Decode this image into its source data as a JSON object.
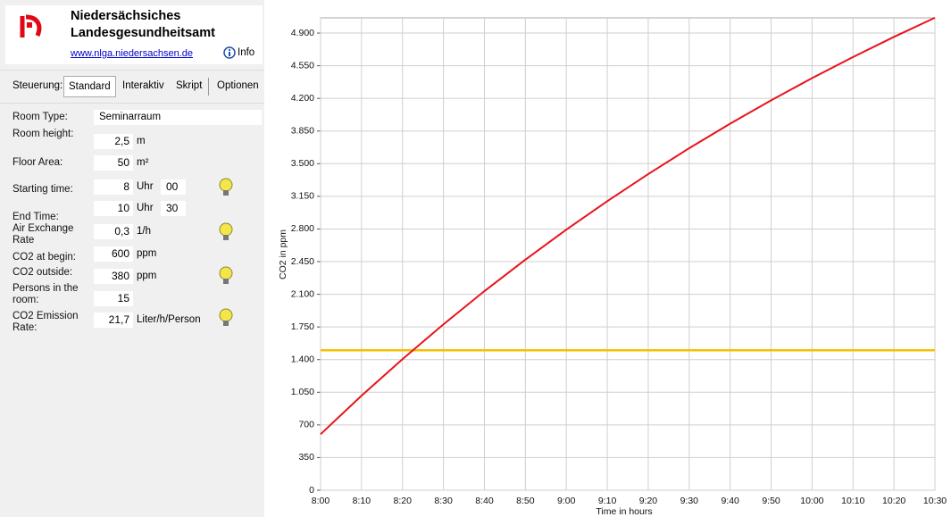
{
  "header": {
    "title_line1": "Niedersächsiches",
    "title_line2": "Landesgesundheitsamt",
    "link": "www.nlga.niedersachsen.de",
    "info": "Info"
  },
  "tabs": {
    "label": "Steuerung:",
    "items": [
      "Standard",
      "Interaktiv",
      "Skript",
      "Optionen"
    ]
  },
  "form": {
    "rows": [
      {
        "label": "Room Type:",
        "value": "Seminarraum"
      },
      {
        "label": "Room height:",
        "value": "2,5",
        "unit": "m"
      },
      {
        "label": "Floor Area:",
        "value": "50",
        "unit": "m²"
      },
      {
        "label": "Starting time:",
        "value": "8",
        "unit": "Uhr",
        "value2": "00"
      },
      {
        "label": "End Time:",
        "value": "10",
        "unit": "Uhr",
        "value2": "30"
      },
      {
        "label": "Air Exchange Rate",
        "value": "0,3",
        "unit": "1/h"
      },
      {
        "label": "CO2 at begin:",
        "value": "600",
        "unit": "ppm"
      },
      {
        "label": "CO2 outside:",
        "value": "380",
        "unit": "ppm"
      },
      {
        "label": "Persons in the room:",
        "value": "15"
      },
      {
        "label": "CO2 Emission Rate:",
        "value": "21,7",
        "unit": "Liter/h/Person"
      }
    ]
  },
  "chart_data": {
    "type": "line",
    "x_label": "Time in hours",
    "y_label": "CO2 in ppm",
    "categories": [
      "8:00",
      "8:10",
      "8:20",
      "8:30",
      "8:40",
      "8:50",
      "9:00",
      "9:10",
      "9:20",
      "9:30",
      "9:40",
      "9:50",
      "10:00",
      "10:10",
      "10:20",
      "10:30"
    ],
    "series": [
      {
        "name": "CO2",
        "color": "#e8141c",
        "values": [
          600,
          1013,
          1405,
          1778,
          2134,
          2471,
          2793,
          3098,
          3389,
          3666,
          3929,
          4179,
          4417,
          4643,
          4859,
          5064
        ]
      }
    ],
    "reference_line": {
      "value": 1500,
      "color": "#f5c000"
    },
    "ylim": [
      0,
      5063
    ],
    "yticks": [
      0,
      350,
      700,
      {
        "value": 1050,
        "label": "1.050"
      },
      {
        "value": 1400,
        "label": "1.400"
      },
      {
        "value": 1750,
        "label": "1.750"
      },
      {
        "value": 2100,
        "label": "2.100"
      },
      {
        "value": 2450,
        "label": "2.450"
      },
      {
        "value": 2800,
        "label": "2.800"
      },
      {
        "value": 3150,
        "label": "3.150"
      },
      {
        "value": 3500,
        "label": "3.500"
      },
      {
        "value": 3850,
        "label": "3.850"
      },
      {
        "value": 4200,
        "label": "4.200"
      },
      {
        "value": 4550,
        "label": "4.550"
      },
      {
        "value": 4900,
        "label": "4.900"
      }
    ],
    "grid": true
  }
}
